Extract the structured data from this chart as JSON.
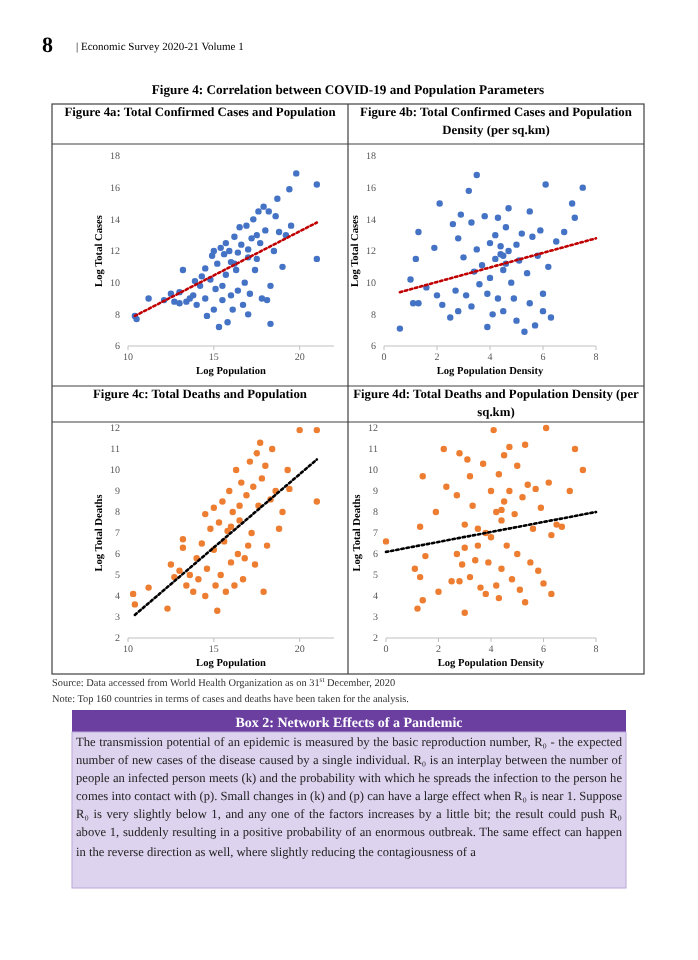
{
  "chart_data": [
    {
      "type": "scatter",
      "title": "Figure 4a: Total Confirmed Cases and Population",
      "xlabel": "Log Population",
      "ylabel": "Log Total Cases",
      "xlim": [
        10,
        22
      ],
      "xticks": [
        10,
        15,
        20
      ],
      "ylim": [
        6,
        18
      ],
      "yticks": [
        6,
        8,
        10,
        12,
        14,
        16,
        18
      ],
      "annotations": [
        "8",
        "| Economic Survey 2020-21   Volume 1",
        "Figure 4: Correlation between COVID-19 and Population Parameters"
      ],
      "series": [
        {
          "color": "#4472c4",
          "marker": "circle",
          "x": [
            10.4,
            10.5,
            11.2,
            12.1,
            12.5,
            12.7,
            13.0,
            13.0,
            13.2,
            13.4,
            13.6,
            13.8,
            13.9,
            14.0,
            14.2,
            14.3,
            14.5,
            14.5,
            14.6,
            14.8,
            14.9,
            15.0,
            15.0,
            15.1,
            15.2,
            15.3,
            15.4,
            15.5,
            15.5,
            15.6,
            15.7,
            15.7,
            15.8,
            15.9,
            16.0,
            16.0,
            16.1,
            16.2,
            16.3,
            16.4,
            16.4,
            16.5,
            16.6,
            16.7,
            16.8,
            16.9,
            17.0,
            17.0,
            17.1,
            17.2,
            17.3,
            17.4,
            17.5,
            17.5,
            17.6,
            17.7,
            17.8,
            17.9,
            18.0,
            18.1,
            18.2,
            18.3,
            18.3,
            18.5,
            18.6,
            18.8,
            19.0,
            19.2,
            19.4,
            19.5,
            19.8,
            21.0,
            21.0,
            18.7,
            16.2,
            17.0
          ],
          "values": [
            7.9,
            7.7,
            9.0,
            8.9,
            9.3,
            8.8,
            9.4,
            8.7,
            10.8,
            8.8,
            9.0,
            9.2,
            10.1,
            8.6,
            9.8,
            10.4,
            10.9,
            9.0,
            7.9,
            10.2,
            11.7,
            8.3,
            12.0,
            9.6,
            11.2,
            7.2,
            12.2,
            9.8,
            8.9,
            11.8,
            12.5,
            10.5,
            7.5,
            12.0,
            11.3,
            9.2,
            8.3,
            12.9,
            10.8,
            11.9,
            9.5,
            13.5,
            12.4,
            8.6,
            10.0,
            13.6,
            11.6,
            8.0,
            9.3,
            12.8,
            14.0,
            10.8,
            11.5,
            13.0,
            14.5,
            12.5,
            9.0,
            14.8,
            13.3,
            8.9,
            14.5,
            7.4,
            9.8,
            12.0,
            14.2,
            13.2,
            11.0,
            13.0,
            15.9,
            13.6,
            16.9,
            16.2,
            11.5,
            15.3,
            11.2,
            12.1
          ]
        },
        {
          "type": "line",
          "color": "#c00000",
          "line_style": "dotted",
          "x": [
            10.4,
            21.0
          ],
          "values": [
            7.9,
            13.8
          ]
        }
      ]
    },
    {
      "type": "scatter",
      "title": "Figure 4b: Total Confirmed Cases and Population Density (per sq.km)",
      "xlabel": "Log Population Density",
      "ylabel": "Log Total Cases",
      "xlim": [
        0,
        8
      ],
      "xticks": [
        0,
        2,
        4,
        6,
        8
      ],
      "ylim": [
        6,
        18
      ],
      "yticks": [
        6,
        8,
        10,
        12,
        14,
        16,
        18
      ],
      "series": [
        {
          "color": "#4472c4",
          "marker": "circle",
          "x": [
            0.6,
            1.0,
            1.1,
            1.2,
            1.3,
            1.3,
            1.6,
            1.9,
            2.0,
            2.1,
            2.2,
            2.5,
            2.6,
            2.7,
            2.8,
            2.8,
            2.9,
            3.0,
            3.1,
            3.2,
            3.3,
            3.3,
            3.4,
            3.5,
            3.5,
            3.6,
            3.7,
            3.8,
            3.9,
            3.9,
            4.0,
            4.0,
            4.1,
            4.2,
            4.2,
            4.3,
            4.3,
            4.4,
            4.4,
            4.5,
            4.5,
            4.6,
            4.6,
            4.7,
            4.7,
            4.8,
            4.9,
            5.0,
            5.0,
            5.1,
            5.2,
            5.3,
            5.4,
            5.5,
            5.5,
            5.6,
            5.7,
            5.8,
            5.9,
            6.0,
            6.1,
            6.2,
            6.3,
            6.5,
            6.8,
            7.1,
            7.2,
            7.5,
            6.0,
            4.5
          ],
          "values": [
            7.1,
            10.2,
            8.7,
            11.5,
            8.7,
            13.2,
            9.7,
            12.2,
            9.2,
            15.0,
            8.6,
            7.8,
            13.7,
            9.5,
            12.8,
            8.2,
            14.3,
            11.6,
            9.2,
            15.8,
            13.8,
            8.5,
            10.7,
            16.8,
            12.1,
            9.9,
            11.1,
            14.2,
            9.3,
            7.2,
            12.5,
            10.3,
            8.0,
            13.0,
            11.5,
            14.1,
            9.0,
            11.8,
            12.3,
            10.8,
            8.2,
            13.5,
            11.2,
            14.7,
            12.0,
            10.0,
            9.0,
            12.4,
            7.6,
            11.4,
            13.1,
            6.9,
            10.6,
            14.5,
            8.7,
            12.9,
            7.3,
            11.7,
            13.3,
            9.3,
            16.2,
            11.0,
            7.8,
            12.6,
            13.2,
            15.0,
            14.1,
            16.0,
            8.2,
            11.7
          ]
        },
        {
          "type": "line",
          "color": "#c00000",
          "line_style": "dotted",
          "x": [
            0.6,
            8.0
          ],
          "values": [
            9.4,
            12.8
          ]
        }
      ]
    },
    {
      "type": "scatter",
      "title": "Figure 4c: Total Deaths and Population",
      "xlabel": "Log Population",
      "ylabel": "Log Total Deaths",
      "xlim": [
        10,
        22
      ],
      "xticks": [
        10,
        15,
        20
      ],
      "ylim": [
        2,
        12
      ],
      "yticks": [
        2,
        3,
        4,
        5,
        6,
        7,
        8,
        9,
        10,
        11,
        12
      ],
      "series": [
        {
          "color": "#ed7d31",
          "marker": "circle",
          "x": [
            10.3,
            10.4,
            11.2,
            12.3,
            12.5,
            12.7,
            13.0,
            13.2,
            13.2,
            13.4,
            13.6,
            13.8,
            14.0,
            14.1,
            14.3,
            14.5,
            14.5,
            14.6,
            14.8,
            15.0,
            15.0,
            15.1,
            15.2,
            15.3,
            15.4,
            15.5,
            15.6,
            15.7,
            15.8,
            15.9,
            16.0,
            16.1,
            16.2,
            16.3,
            16.4,
            16.5,
            16.6,
            16.7,
            16.8,
            16.9,
            17.0,
            17.1,
            17.2,
            17.3,
            17.4,
            17.5,
            17.6,
            17.7,
            17.8,
            17.9,
            18.0,
            18.1,
            18.3,
            18.4,
            18.6,
            18.8,
            19.0,
            19.3,
            19.4,
            20.0,
            21.0,
            21.0,
            16.0,
            16.5
          ],
          "values": [
            4.1,
            3.6,
            4.4,
            3.4,
            5.5,
            4.9,
            5.2,
            6.3,
            6.7,
            4.5,
            5.0,
            4.2,
            5.8,
            4.8,
            6.5,
            7.9,
            4.0,
            5.3,
            7.2,
            8.2,
            6.2,
            4.5,
            3.3,
            7.5,
            5.0,
            8.5,
            6.6,
            4.2,
            7.1,
            9.0,
            5.6,
            8.0,
            4.5,
            10.0,
            6.0,
            7.6,
            9.4,
            4.8,
            5.8,
            8.8,
            6.4,
            10.4,
            7.0,
            9.2,
            5.5,
            10.8,
            8.3,
            11.3,
            9.6,
            4.2,
            10.2,
            6.4,
            8.6,
            11.0,
            9.0,
            7.2,
            8.0,
            10.0,
            9.1,
            11.9,
            11.9,
            8.5,
            7.3,
            8.3
          ]
        },
        {
          "type": "line",
          "color": "#000000",
          "line_style": "dotted",
          "x": [
            10.4,
            21.0
          ],
          "values": [
            3.1,
            10.5
          ]
        }
      ]
    },
    {
      "type": "scatter",
      "title": "Figure 4d: Total Deaths and Population Density (per sq.km)",
      "xlabel": "Log Population Density",
      "ylabel": "Log Total Deaths",
      "xlim": [
        0,
        8
      ],
      "xticks": [
        0,
        2,
        4,
        6,
        8
      ],
      "ylim": [
        2,
        12
      ],
      "yticks": [
        2,
        3,
        4,
        5,
        6,
        7,
        8,
        9,
        10,
        11,
        12
      ],
      "annotations": [
        "Source: Data accessed from World Health Organization as on 31$^{st}$ December, 2020",
        "Note: Top 160 countries in terms of cases and deaths have been taken for the analysis."
      ],
      "series": [
        {
          "color": "#ed7d31",
          "marker": "circle",
          "x": [
            0,
            1.1,
            1.2,
            1.3,
            1.3,
            1.4,
            1.4,
            1.5,
            1.9,
            2.0,
            2.2,
            2.3,
            2.5,
            2.7,
            2.7,
            2.8,
            2.8,
            2.9,
            3.0,
            3.0,
            3.0,
            3.1,
            3.2,
            3.2,
            3.3,
            3.4,
            3.5,
            3.5,
            3.6,
            3.7,
            3.8,
            3.8,
            3.9,
            4.0,
            4.0,
            4.1,
            4.2,
            4.2,
            4.3,
            4.3,
            4.4,
            4.4,
            4.5,
            4.5,
            4.6,
            4.7,
            4.7,
            4.8,
            4.9,
            5.0,
            5.0,
            5.1,
            5.2,
            5.3,
            5.3,
            5.4,
            5.5,
            5.6,
            5.7,
            5.8,
            5.9,
            6.0,
            6.1,
            6.2,
            6.3,
            6.3,
            6.5,
            6.7,
            7.0,
            7.2,
            7.5,
            4.4
          ],
          "values": [
            6.6,
            5.3,
            3.4,
            7.3,
            4.9,
            3.8,
            9.7,
            5.9,
            8.0,
            4.2,
            11.0,
            9.2,
            4.7,
            8.8,
            6.0,
            10.8,
            4.7,
            5.5,
            7.4,
            6.3,
            3.2,
            10.5,
            9.7,
            4.9,
            8.3,
            5.7,
            7.2,
            6.4,
            4.4,
            10.3,
            7.0,
            4.1,
            5.6,
            9.0,
            6.8,
            11.9,
            8.0,
            4.5,
            9.8,
            3.9,
            7.6,
            5.3,
            10.7,
            8.5,
            6.4,
            11.1,
            9.0,
            4.8,
            7.9,
            10.2,
            6.0,
            4.3,
            8.7,
            11.2,
            3.7,
            9.3,
            5.6,
            7.2,
            9.1,
            5.2,
            8.2,
            4.6,
            12.0,
            9.4,
            4.1,
            6.9,
            7.4,
            7.3,
            9.0,
            11.0,
            10.0,
            8.1
          ]
        },
        {
          "type": "line",
          "color": "#000000",
          "line_style": "dotted",
          "x": [
            0,
            8.0
          ],
          "values": [
            6.1,
            8.0
          ]
        }
      ]
    },
    {
      "type": "other",
      "title": "Box 2: Network Effects of a Pandemic",
      "annotations": [
        "The transmission potential of an epidemic is measured by the basic reproduction number, R₀ - the expected number of new cases of the disease caused by a single individual. R₀ is an interplay between the number of people an infected person meets (k) and the probability with which he spreads the infection to the person he comes into contact with (p). Small changes in (k) and (p) can have a large effect when R₀ is near 1. Suppose R₀ is very slightly below 1, and any one of the factors increases by a little bit; the result could push R₀ above 1, suddenly resulting in a positive probability of an enormous outbreak. The same effect can happen in the reverse direction as well, where slightly reducing the contagiousness of a"
      ]
    }
  ]
}
